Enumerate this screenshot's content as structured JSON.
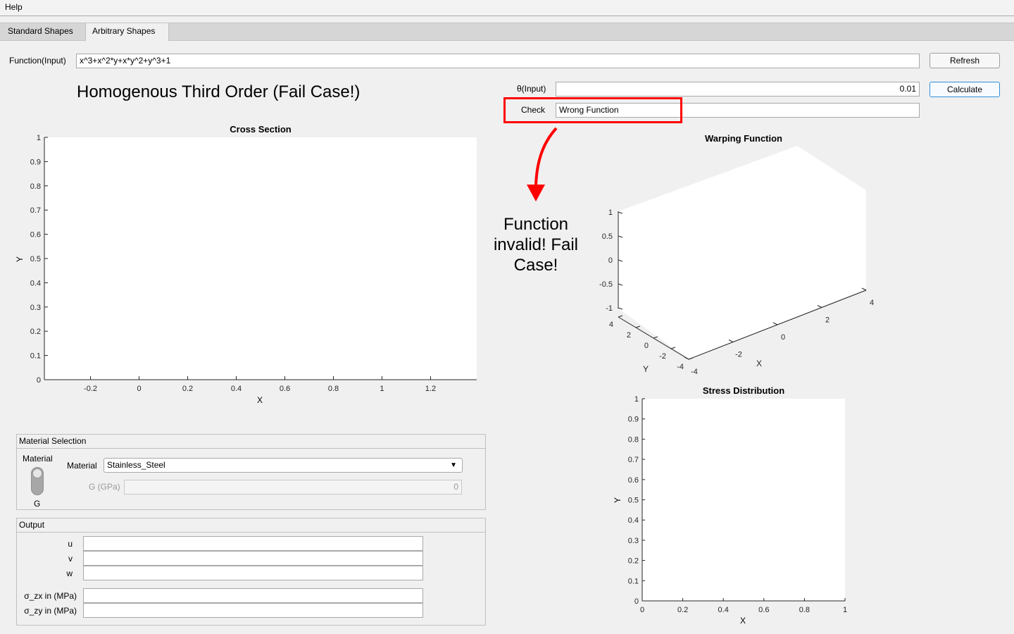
{
  "menu": {
    "help": "Help"
  },
  "tabs": [
    {
      "label": "Standard Shapes"
    },
    {
      "label": "Arbitrary Shapes"
    }
  ],
  "function_input": {
    "label": "Function(Input)",
    "value": "x^3+x^2*y+x*y^2+y^3+1"
  },
  "buttons": {
    "refresh": "Refresh",
    "calculate": "Calculate"
  },
  "theta_input": {
    "label": "θ(Input)",
    "value": "0.01"
  },
  "check": {
    "label": "Check",
    "value": "Wrong Function"
  },
  "heading": "Homogenous Third Order (Fail Case!)",
  "annotation": {
    "text": "Function invalid! Fail Case!",
    "color": "#ff0000"
  },
  "cross_section": {
    "title": "Cross Section",
    "xlabel": "X",
    "ylabel": "Y",
    "xticks": [
      "-0.2",
      "0",
      "0.2",
      "0.4",
      "0.6",
      "0.8",
      "1",
      "1.2"
    ],
    "yticks": [
      "0",
      "0.1",
      "0.2",
      "0.3",
      "0.4",
      "0.5",
      "0.6",
      "0.7",
      "0.8",
      "0.9",
      "1"
    ]
  },
  "warping": {
    "title": "Warping Function",
    "xlabel": "X",
    "ylabel": "Y",
    "xticks": [
      "-4",
      "-2",
      "0",
      "2",
      "4"
    ],
    "yticks": [
      "-4",
      "-2",
      "0",
      "2",
      "4"
    ],
    "zticks": [
      "-1",
      "-0.5",
      "0",
      "0.5",
      "1"
    ]
  },
  "stress": {
    "title": "Stress Distribution",
    "xlabel": "X",
    "ylabel": "Y",
    "xticks": [
      "0",
      "0.2",
      "0.4",
      "0.6",
      "0.8",
      "1"
    ],
    "yticks": [
      "0",
      "0.1",
      "0.2",
      "0.3",
      "0.4",
      "0.5",
      "0.6",
      "0.7",
      "0.8",
      "0.9",
      "1"
    ]
  },
  "material_panel": {
    "title": "Material Selection",
    "switch_top": "Material",
    "switch_bottom": "G",
    "material_label": "Material",
    "material_value": "Stainless_Steel",
    "g_label": "G (GPa)",
    "g_value": "0"
  },
  "output_panel": {
    "title": "Output",
    "fields": [
      {
        "label": "u",
        "value": ""
      },
      {
        "label": "v",
        "value": ""
      },
      {
        "label": "w",
        "value": ""
      },
      {
        "label": "σ_zx in (MPa)",
        "value": ""
      },
      {
        "label": "σ_zy in (MPa)",
        "value": ""
      }
    ]
  }
}
